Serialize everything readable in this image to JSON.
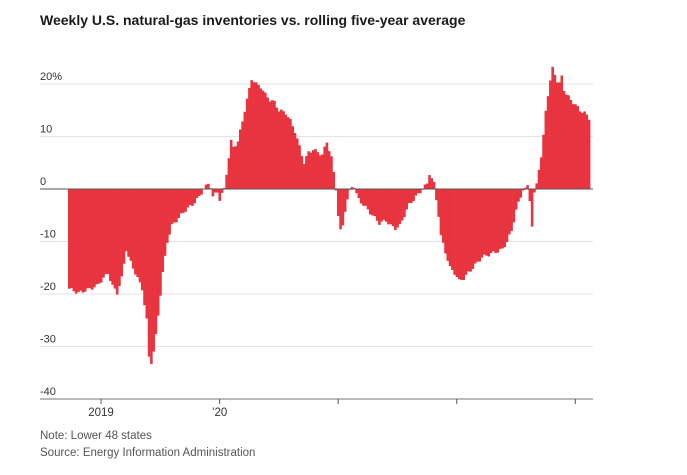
{
  "chart_data": {
    "type": "bar",
    "title": "Weekly U.S. natural-gas inventories vs. rolling five-year average",
    "xlabel": "",
    "ylabel": "",
    "ylim": [
      -40,
      20
    ],
    "yticks": [
      {
        "value": 20,
        "label": "20%"
      },
      {
        "value": 10,
        "label": "10"
      },
      {
        "value": 0,
        "label": "0"
      },
      {
        "value": -10,
        "label": "-10"
      },
      {
        "value": -20,
        "label": "-20"
      },
      {
        "value": -30,
        "label": "-30"
      },
      {
        "value": -40,
        "label": "-40"
      }
    ],
    "xticks": [
      {
        "week": 14.5,
        "label": "2019"
      },
      {
        "week": 66.5,
        "label": "’20"
      },
      {
        "week": 118.5,
        "label": ""
      },
      {
        "week": 170.5,
        "label": ""
      },
      {
        "week": 222.5,
        "label": ""
      }
    ],
    "grid": true,
    "bar_color": "#e8343f",
    "weeks_start": 0,
    "anchors": [
      [
        0,
        -19.0
      ],
      [
        4,
        -19.8
      ],
      [
        8,
        -19.2
      ],
      [
        12,
        -18.5
      ],
      [
        15,
        -17.0
      ],
      [
        17,
        -16.0
      ],
      [
        19,
        -18.5
      ],
      [
        21,
        -19.8
      ],
      [
        23,
        -17.0
      ],
      [
        25,
        -11.5
      ],
      [
        26,
        -13.0
      ],
      [
        28,
        -15.0
      ],
      [
        30,
        -17.0
      ],
      [
        32,
        -19.0
      ],
      [
        34,
        -25.0
      ],
      [
        35,
        -32.0
      ],
      [
        36,
        -33.0
      ],
      [
        37,
        -31.0
      ],
      [
        38,
        -28.0
      ],
      [
        39,
        -24.0
      ],
      [
        41,
        -16.0
      ],
      [
        43,
        -10.0
      ],
      [
        45,
        -7.0
      ],
      [
        48,
        -5.5
      ],
      [
        51,
        -4.0
      ],
      [
        54,
        -3.0
      ],
      [
        57,
        -1.5
      ],
      [
        59,
        0.0
      ],
      [
        60,
        0.5
      ],
      [
        61,
        1.0
      ],
      [
        62,
        0.5
      ],
      [
        63,
        -1.5
      ],
      [
        64,
        -1.0
      ],
      [
        65,
        -0.5
      ],
      [
        66,
        -2.0
      ],
      [
        67,
        -1.0
      ],
      [
        68,
        0.0
      ],
      [
        69,
        3.0
      ],
      [
        70,
        6.0
      ],
      [
        71,
        9.0
      ],
      [
        72,
        8.0
      ],
      [
        74,
        9.0
      ],
      [
        76,
        13.0
      ],
      [
        78,
        17.0
      ],
      [
        80,
        21.0
      ],
      [
        82,
        20.0
      ],
      [
        84,
        19.5
      ],
      [
        86,
        18.0
      ],
      [
        88,
        17.0
      ],
      [
        90,
        16.5
      ],
      [
        92,
        15.0
      ],
      [
        95,
        14.5
      ],
      [
        97,
        13.0
      ],
      [
        99,
        11.0
      ],
      [
        101,
        8.0
      ],
      [
        103,
        5.0
      ],
      [
        105,
        7.0
      ],
      [
        107,
        7.5
      ],
      [
        109,
        7.0
      ],
      [
        111,
        6.5
      ],
      [
        113,
        9.0
      ],
      [
        115,
        6.0
      ],
      [
        117,
        0.0
      ],
      [
        118,
        -5.0
      ],
      [
        119,
        -8.0
      ],
      [
        120,
        -7.0
      ],
      [
        121,
        -4.0
      ],
      [
        122,
        -2.0
      ],
      [
        123,
        -0.5
      ],
      [
        124,
        0.5
      ],
      [
        125,
        0.5
      ],
      [
        126,
        -1.0
      ],
      [
        127,
        -2.0
      ],
      [
        129,
        -3.0
      ],
      [
        131,
        -4.0
      ],
      [
        133,
        -5.0
      ],
      [
        136,
        -6.5
      ],
      [
        139,
        -6.0
      ],
      [
        141,
        -7.0
      ],
      [
        143,
        -7.5
      ],
      [
        145,
        -7.0
      ],
      [
        147,
        -5.0
      ],
      [
        149,
        -3.0
      ],
      [
        151,
        -2.0
      ],
      [
        153,
        -1.0
      ],
      [
        155,
        0.0
      ],
      [
        157,
        1.0
      ],
      [
        158,
        3.0
      ],
      [
        159,
        2.0
      ],
      [
        160,
        1.0
      ],
      [
        161,
        -2.0
      ],
      [
        162,
        -5.0
      ],
      [
        163,
        -9.0
      ],
      [
        165,
        -12.0
      ],
      [
        167,
        -15.0
      ],
      [
        169,
        -16.0
      ],
      [
        171,
        -17.5
      ],
      [
        173,
        -17.0
      ],
      [
        175,
        -16.0
      ],
      [
        177,
        -15.0
      ],
      [
        179,
        -14.0
      ],
      [
        181,
        -13.0
      ],
      [
        184,
        -12.5
      ],
      [
        187,
        -12.0
      ],
      [
        190,
        -11.5
      ],
      [
        192,
        -10.0
      ],
      [
        194,
        -8.0
      ],
      [
        196,
        -4.0
      ],
      [
        198,
        -1.5
      ],
      [
        199,
        0.0
      ],
      [
        200,
        0.0
      ],
      [
        201,
        0.5
      ],
      [
        202,
        -2.0
      ],
      [
        203,
        -7.0
      ],
      [
        204,
        -1.0
      ],
      [
        205,
        1.0
      ],
      [
        206,
        4.0
      ],
      [
        207,
        6.0
      ],
      [
        208,
        10.0
      ],
      [
        209,
        15.0
      ],
      [
        210,
        18.0
      ],
      [
        211,
        20.5
      ],
      [
        212,
        23.0
      ],
      [
        213,
        22.0
      ],
      [
        214,
        20.5
      ],
      [
        215,
        20.0
      ],
      [
        216,
        21.5
      ],
      [
        217,
        19.0
      ],
      [
        218,
        18.0
      ],
      [
        220,
        17.0
      ],
      [
        222,
        16.0
      ],
      [
        224,
        15.0
      ],
      [
        226,
        14.5
      ],
      [
        228,
        13.5
      ]
    ]
  },
  "notes": {
    "note": "Note: Lower 48 states",
    "source": "Source: Energy Information Administration"
  }
}
